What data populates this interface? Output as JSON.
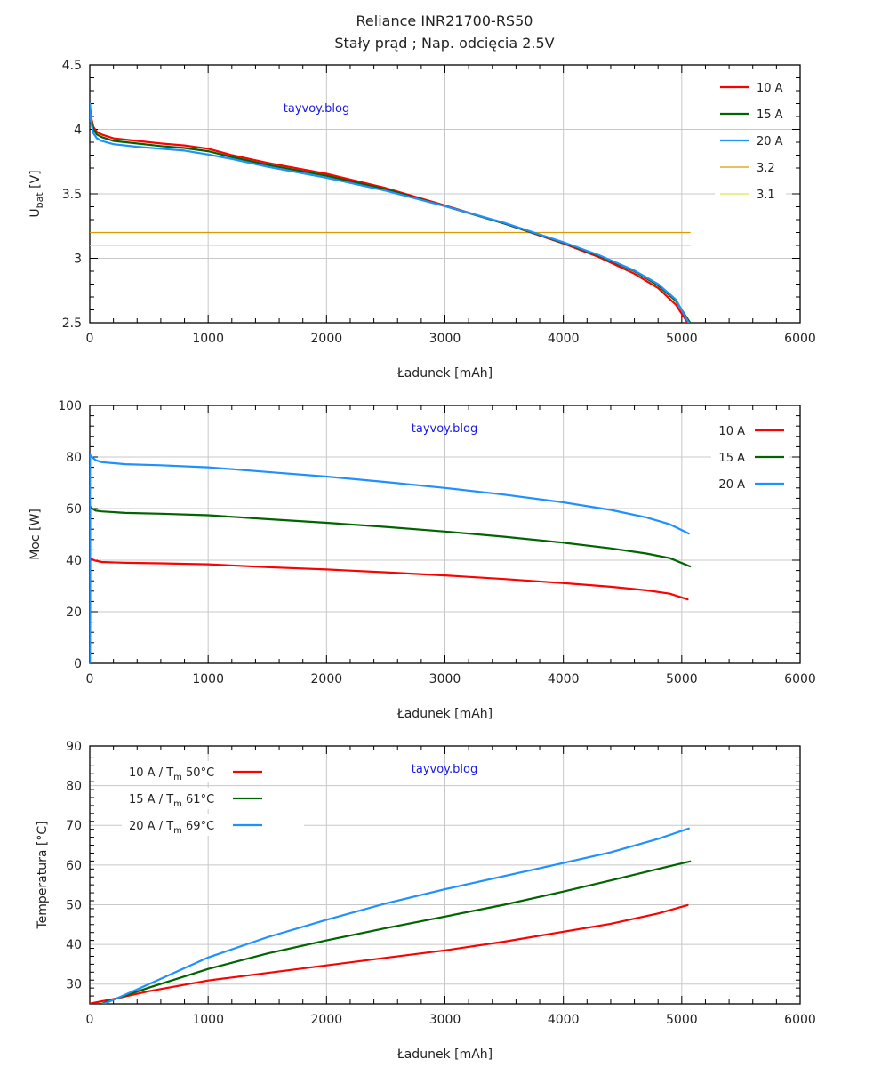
{
  "title": "Reliance INR21700-RS50",
  "subtitle": "Stały prąd ; Nap. odcięcia 2.5V",
  "watermark": "tayvoy.blog",
  "colors": {
    "10A": "#ff0000",
    "15A": "#006400",
    "20A": "#1e90ff",
    "ref32": "#dc9a00",
    "ref31": "#e8e040",
    "grid": "#c8c8c8"
  },
  "chart_data": [
    {
      "type": "line",
      "id": "voltage",
      "xlabel": "Ładunek [mAh]",
      "ylabel": "U",
      "ylabel_sub": "bat",
      "ylabel_unit": "[V]",
      "xlim": [
        0,
        6000
      ],
      "ylim": [
        2.5,
        4.5
      ],
      "xticks": [
        0,
        1000,
        2000,
        3000,
        4000,
        5000,
        6000
      ],
      "yticks": [
        2.5,
        3,
        3.5,
        4,
        4.5
      ],
      "ytick_labels": [
        "2.5",
        "3",
        "3.5",
        "4",
        "4.5"
      ],
      "x_minor": 200,
      "y_minor": 0.1,
      "grid": true,
      "legend_position": "top-right",
      "series": [
        {
          "name": "10 A",
          "color_key": "10A",
          "x": [
            0,
            10,
            30,
            60,
            100,
            200,
            400,
            600,
            800,
            1000,
            1200,
            1500,
            2000,
            2500,
            3000,
            3500,
            4000,
            4300,
            4600,
            4800,
            4950,
            5050
          ],
          "y": [
            4.2,
            4.1,
            4.02,
            3.98,
            3.96,
            3.93,
            3.91,
            3.89,
            3.875,
            3.85,
            3.8,
            3.74,
            3.655,
            3.545,
            3.41,
            3.27,
            3.115,
            3.01,
            2.88,
            2.77,
            2.64,
            2.5
          ]
        },
        {
          "name": "15 A",
          "color_key": "15A",
          "x": [
            0,
            10,
            30,
            60,
            100,
            200,
            400,
            600,
            800,
            1000,
            1200,
            1500,
            2000,
            2500,
            3000,
            3500,
            4000,
            4300,
            4600,
            4800,
            4950,
            5070
          ],
          "y": [
            4.2,
            4.08,
            4.0,
            3.96,
            3.94,
            3.91,
            3.89,
            3.87,
            3.855,
            3.83,
            3.785,
            3.725,
            3.64,
            3.535,
            3.405,
            3.27,
            3.12,
            3.02,
            2.9,
            2.79,
            2.67,
            2.5
          ]
        },
        {
          "name": "20 A",
          "color_key": "20A",
          "x": [
            0,
            10,
            30,
            60,
            100,
            200,
            400,
            600,
            800,
            1000,
            1200,
            1500,
            2000,
            2500,
            3000,
            3500,
            4000,
            4300,
            4600,
            4800,
            4950,
            5060
          ],
          "y": [
            4.2,
            4.06,
            3.97,
            3.93,
            3.91,
            3.885,
            3.865,
            3.85,
            3.835,
            3.805,
            3.77,
            3.71,
            3.625,
            3.525,
            3.405,
            3.275,
            3.125,
            3.025,
            2.905,
            2.8,
            2.68,
            2.5
          ]
        },
        {
          "name": "3.2",
          "color_key": "ref32",
          "thin": true,
          "x": [
            0,
            5070
          ],
          "y": [
            3.2,
            3.2
          ]
        },
        {
          "name": "3.1",
          "color_key": "ref31",
          "thin": true,
          "x": [
            0,
            5070
          ],
          "y": [
            3.1,
            3.1
          ]
        }
      ]
    },
    {
      "type": "line",
      "id": "power",
      "xlabel": "Ładunek [mAh]",
      "ylabel": "Moc [W]",
      "xlim": [
        0,
        6000
      ],
      "ylim": [
        0,
        100
      ],
      "xticks": [
        0,
        1000,
        2000,
        3000,
        4000,
        5000,
        6000
      ],
      "yticks": [
        0,
        20,
        40,
        60,
        80,
        100
      ],
      "ytick_labels": [
        "0",
        "20",
        "40",
        "60",
        "80",
        "100"
      ],
      "x_minor": 200,
      "y_minor": 4,
      "grid": true,
      "legend_position": "top-right",
      "series": [
        {
          "name": "10 A",
          "color_key": "10A",
          "x": [
            0,
            2,
            10,
            50,
            100,
            300,
            600,
            1000,
            1500,
            2000,
            2500,
            3000,
            3500,
            4000,
            4400,
            4700,
            4900,
            5050
          ],
          "y": [
            0,
            41,
            40.5,
            39.8,
            39.3,
            39.0,
            38.8,
            38.4,
            37.3,
            36.4,
            35.3,
            34.1,
            32.7,
            31.1,
            29.7,
            28.3,
            27.0,
            24.8
          ]
        },
        {
          "name": "15 A",
          "color_key": "15A",
          "x": [
            0,
            2,
            10,
            50,
            100,
            300,
            600,
            1000,
            1500,
            2000,
            2500,
            3000,
            3500,
            4000,
            4400,
            4700,
            4900,
            5070
          ],
          "y": [
            0,
            61,
            60.3,
            59.2,
            58.9,
            58.3,
            58.0,
            57.4,
            55.9,
            54.5,
            52.9,
            51.1,
            49.1,
            46.8,
            44.6,
            42.6,
            40.8,
            37.6
          ]
        },
        {
          "name": "20 A",
          "color_key": "20A",
          "x": [
            0,
            2,
            10,
            50,
            100,
            300,
            600,
            1000,
            1500,
            2000,
            2500,
            3000,
            3500,
            4000,
            4400,
            4700,
            4900,
            5060
          ],
          "y": [
            0,
            81,
            80.2,
            78.8,
            78.0,
            77.2,
            76.8,
            76.0,
            74.2,
            72.4,
            70.3,
            68.0,
            65.4,
            62.4,
            59.5,
            56.6,
            53.9,
            50.3
          ]
        }
      ]
    },
    {
      "type": "line",
      "id": "temperature",
      "xlabel": "Ładunek [mAh]",
      "ylabel": "Temperatura [°C]",
      "xlim": [
        0,
        6000
      ],
      "ylim": [
        25,
        90
      ],
      "xticks": [
        0,
        1000,
        2000,
        3000,
        4000,
        5000,
        6000
      ],
      "yticks": [
        30,
        40,
        50,
        60,
        70,
        80,
        90
      ],
      "ytick_labels": [
        "30",
        "40",
        "50",
        "60",
        "70",
        "80",
        "90"
      ],
      "x_minor": 200,
      "y_minor": 2,
      "grid": true,
      "legend_position": "top-left",
      "series": [
        {
          "name": "10 A  / T",
          "sub": "m",
          "suffix": " 50°C",
          "color_key": "10A",
          "x": [
            0,
            200,
            500,
            1000,
            1500,
            2000,
            2500,
            3000,
            3500,
            4000,
            4400,
            4800,
            5050
          ],
          "y": [
            25.1,
            26.2,
            28.2,
            30.9,
            32.8,
            34.7,
            36.6,
            38.5,
            40.7,
            43.2,
            45.2,
            47.8,
            49.9
          ]
        },
        {
          "name": "15 A  / T",
          "sub": "m",
          "suffix": " 61°C",
          "color_key": "15A",
          "x": [
            0,
            100,
            200,
            500,
            1000,
            1500,
            2000,
            2500,
            3000,
            3500,
            4000,
            4400,
            4800,
            5070
          ],
          "y": [
            24.8,
            25.0,
            26.1,
            29.1,
            33.8,
            37.7,
            41.0,
            44.1,
            47.0,
            50.0,
            53.3,
            56.1,
            59.0,
            60.9
          ]
        },
        {
          "name": "20 A  / T",
          "sub": "m",
          "suffix": " 69°C",
          "color_key": "20A",
          "x": [
            0,
            100,
            200,
            500,
            1000,
            1500,
            2000,
            2500,
            3000,
            3500,
            4000,
            4400,
            4800,
            5060
          ],
          "y": [
            24.6,
            24.8,
            26.0,
            30.0,
            36.7,
            41.8,
            46.2,
            50.3,
            53.9,
            57.2,
            60.5,
            63.2,
            66.6,
            69.2
          ]
        }
      ]
    }
  ]
}
